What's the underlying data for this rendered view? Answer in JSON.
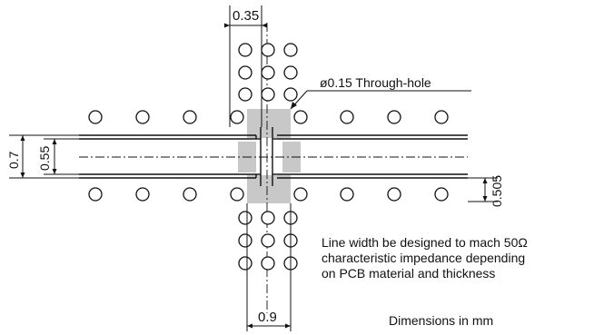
{
  "labels": {
    "dim_top_gap": "0.35",
    "dim_bottom_width": "0.9",
    "dim_outer": "0.7",
    "dim_inner": "0.55",
    "dim_right": "0.505",
    "through_hole": "ø0.15 Through-hole",
    "note_line1": "Line width be designed to mach 50Ω",
    "note_line2": "characteristic impedance depending",
    "note_line3": "on PCB material and thickness",
    "units": "Dimensions in mm"
  }
}
